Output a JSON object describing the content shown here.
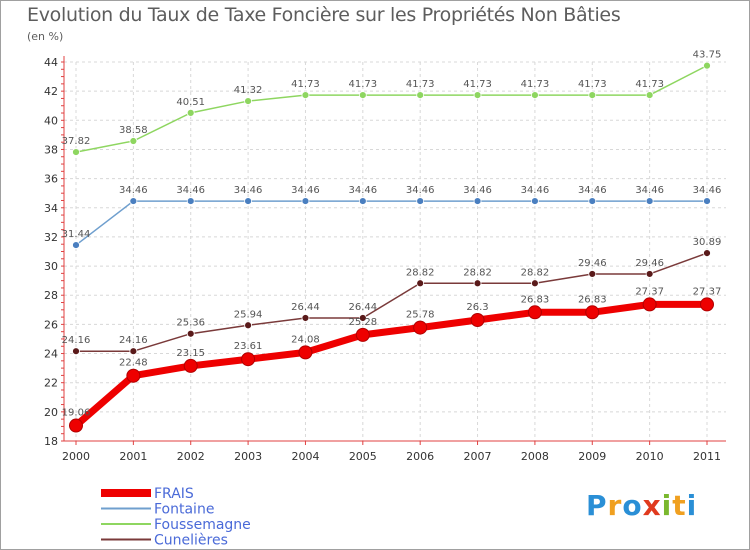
{
  "header": {
    "title": "Evolution du Taux de Taxe Foncière sur les Propriétés Non Bâties",
    "subtitle": "(en %)"
  },
  "logo": {
    "text": "Proxiti",
    "letters": [
      "P",
      "r",
      "o",
      "x",
      "i",
      "t",
      "i"
    ],
    "colors": [
      "#2a8fd6",
      "#f0a020",
      "#2a8fd6",
      "#e03a1e",
      "#7ab82e",
      "#f0a020",
      "#2a8fd6"
    ]
  },
  "chart_data": {
    "type": "line",
    "title": "Evolution du Taux de Taxe Foncière sur les Propriétés Non Bâties",
    "ylabel": "(en %)",
    "xlabel": "",
    "x": [
      "2000",
      "2001",
      "2002",
      "2003",
      "2004",
      "2005",
      "2006",
      "2007",
      "2008",
      "2009",
      "2010",
      "2011"
    ],
    "ylim": [
      18,
      44
    ],
    "yticks": [
      18,
      20,
      22,
      24,
      26,
      28,
      30,
      32,
      34,
      36,
      38,
      40,
      42,
      44
    ],
    "grid": true,
    "legend_position": "bottom-left",
    "series": [
      {
        "name": "FRAIS",
        "color": "#ee0000",
        "marker": "#ee0000",
        "emphasis": true,
        "values": [
          19.06,
          22.48,
          23.15,
          23.61,
          24.08,
          25.28,
          25.78,
          26.3,
          26.83,
          26.83,
          27.37,
          27.37
        ],
        "labels": [
          "19.06",
          "22.48",
          "23.15",
          "23.61",
          "24.08",
          "25.28",
          "25.78",
          "26.3",
          "26.83",
          "26.83",
          "27.37",
          "27.37"
        ]
      },
      {
        "name": "Fontaine",
        "color": "#6f9fce",
        "marker": "#4a7fc0",
        "emphasis": false,
        "values": [
          31.44,
          34.46,
          34.46,
          34.46,
          34.46,
          34.46,
          34.46,
          34.46,
          34.46,
          34.46,
          34.46,
          34.46
        ],
        "labels": [
          "31.44",
          "34.46",
          "34.46",
          "34.46",
          "34.46",
          "34.46",
          "34.46",
          "34.46",
          "34.46",
          "34.46",
          "34.46",
          "34.46"
        ]
      },
      {
        "name": "Foussemagne",
        "color": "#8ed660",
        "marker": "#8ed660",
        "emphasis": false,
        "values": [
          37.82,
          38.58,
          40.51,
          41.32,
          41.73,
          41.73,
          41.73,
          41.73,
          41.73,
          41.73,
          41.73,
          43.75
        ],
        "labels": [
          "37.82",
          "38.58",
          "40.51",
          "41.32",
          "41.73",
          "41.73",
          "41.73",
          "41.73",
          "41.73",
          "41.73",
          "41.73",
          "43.75"
        ]
      },
      {
        "name": "Cunelières",
        "color": "#7a3a3a",
        "marker": "#5a1a1a",
        "emphasis": false,
        "values": [
          24.16,
          24.16,
          25.36,
          25.94,
          26.44,
          26.44,
          28.82,
          28.82,
          28.82,
          29.46,
          29.46,
          30.89
        ],
        "labels": [
          "24.16",
          "24.16",
          "25.36",
          "25.94",
          "26.44",
          "26.44",
          "28.82",
          "28.82",
          "28.82",
          "29.46",
          "29.46",
          "30.89"
        ]
      }
    ]
  }
}
